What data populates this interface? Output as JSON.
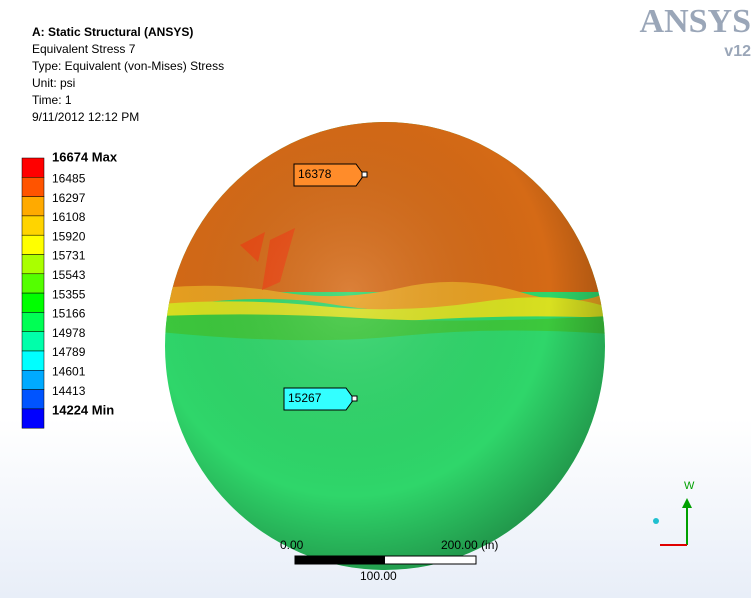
{
  "header": {
    "title": "A: Static Structural (ANSYS)",
    "lines": [
      "Equivalent Stress 7",
      "Type: Equivalent (von-Mises) Stress",
      "Unit: psi",
      "Time: 1",
      "9/11/2012 12:12 PM"
    ]
  },
  "logo": {
    "name": "ANSYS",
    "version": "v12"
  },
  "legend": {
    "labels": [
      "16674 Max",
      "16485",
      "16297",
      "16108",
      "15920",
      "15731",
      "15543",
      "15355",
      "15166",
      "14978",
      "14789",
      "14601",
      "14413",
      "14224 Min"
    ],
    "colors": [
      "#ff0000",
      "#ff5400",
      "#ffaa00",
      "#ffd400",
      "#ffff00",
      "#aaff00",
      "#54ff00",
      "#00ff00",
      "#00ff54",
      "#00ffaa",
      "#00ffff",
      "#00aaff",
      "#0054ff",
      "#0000ff"
    ]
  },
  "probes": [
    {
      "label": "16378"
    },
    {
      "label": "15267"
    }
  ],
  "scale": {
    "start": "0.00",
    "end": "200.00 (in)",
    "mid": "100.00"
  },
  "triad": {
    "axis": "W"
  }
}
